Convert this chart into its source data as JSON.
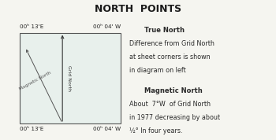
{
  "title": "NORTH  POINTS",
  "title_bg": "#c8e0d8",
  "bg_color": "#f5f5f0",
  "box_bg": "#e8f0ec",
  "corner_labels": {
    "top_left": "00ʰ 13'E",
    "top_right": "00ʰ 04' W",
    "bot_left": "00ʰ 13'E",
    "bot_right": "00ʰ 04' W"
  },
  "grid_north_label": "Grid North",
  "magnetic_north_label": "Magnetic North",
  "text_block": [
    {
      "text": "True North",
      "bold": true,
      "indent": 20
    },
    {
      "text": "Difference from Grid North",
      "bold": false,
      "indent": 0
    },
    {
      "text": "at sheet corners is shown",
      "bold": false,
      "indent": 0
    },
    {
      "text": "in diagram on left",
      "bold": false,
      "indent": 0
    },
    {
      "text": "",
      "bold": false,
      "indent": 0
    },
    {
      "text": "Magnetic North",
      "bold": true,
      "indent": 20
    },
    {
      "text": "About  7°W  of Grid North",
      "bold": false,
      "indent": 0
    },
    {
      "text": "in 1977 decreasing by about",
      "bold": false,
      "indent": 0
    },
    {
      "text": "½° In four years.",
      "bold": false,
      "indent": 0
    }
  ]
}
